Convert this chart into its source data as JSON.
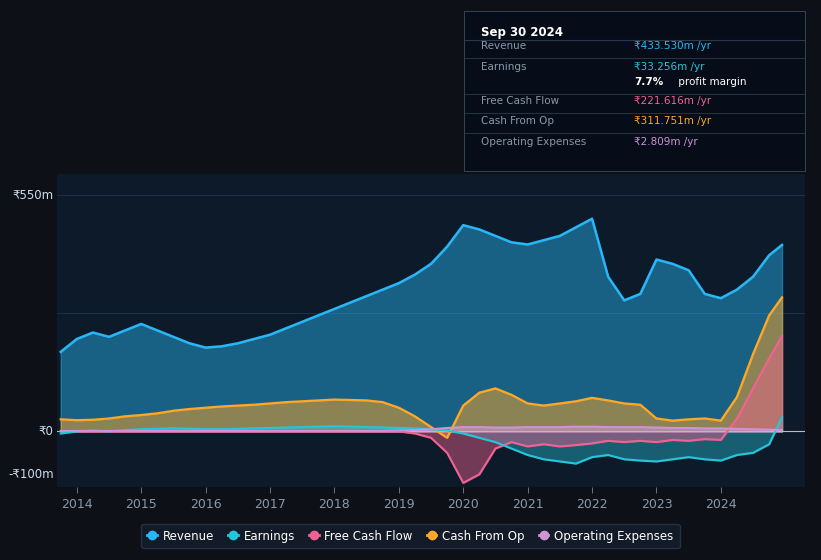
{
  "bg_color": "#0d1117",
  "plot_bg_color": "#0d1a2a",
  "ylim": [
    -130,
    600
  ],
  "xlim": [
    2013.7,
    2025.3
  ],
  "xticks": [
    2014,
    2015,
    2016,
    2017,
    2018,
    2019,
    2020,
    2021,
    2022,
    2023,
    2024
  ],
  "years": [
    2013.75,
    2014.0,
    2014.25,
    2014.5,
    2014.75,
    2015.0,
    2015.25,
    2015.5,
    2015.75,
    2016.0,
    2016.25,
    2016.5,
    2016.75,
    2017.0,
    2017.25,
    2017.5,
    2017.75,
    2018.0,
    2018.25,
    2018.5,
    2018.75,
    2019.0,
    2019.25,
    2019.5,
    2019.75,
    2020.0,
    2020.25,
    2020.5,
    2020.75,
    2021.0,
    2021.25,
    2021.5,
    2021.75,
    2022.0,
    2022.25,
    2022.5,
    2022.75,
    2023.0,
    2023.25,
    2023.5,
    2023.75,
    2024.0,
    2024.25,
    2024.5,
    2024.75,
    2024.95
  ],
  "revenue": [
    185,
    215,
    230,
    220,
    235,
    250,
    235,
    220,
    205,
    195,
    198,
    205,
    215,
    225,
    240,
    255,
    270,
    285,
    300,
    315,
    330,
    345,
    365,
    390,
    430,
    480,
    470,
    455,
    440,
    435,
    445,
    455,
    475,
    495,
    360,
    305,
    320,
    400,
    390,
    375,
    320,
    310,
    330,
    360,
    410,
    434
  ],
  "earnings": [
    -5,
    0,
    2,
    0,
    3,
    5,
    6,
    7,
    6,
    5,
    5,
    6,
    7,
    8,
    9,
    10,
    11,
    12,
    11,
    10,
    9,
    8,
    7,
    5,
    2,
    -5,
    -15,
    -25,
    -40,
    -55,
    -65,
    -70,
    -75,
    -60,
    -55,
    -65,
    -68,
    -70,
    -65,
    -60,
    -65,
    -68,
    -55,
    -50,
    -30,
    33
  ],
  "free_cash_flow": [
    0,
    0,
    0,
    0,
    0,
    0,
    0,
    0,
    0,
    0,
    0,
    0,
    0,
    0,
    0,
    0,
    0,
    0,
    0,
    0,
    0,
    0,
    -5,
    -15,
    -50,
    -120,
    -100,
    -40,
    -25,
    -35,
    -30,
    -35,
    -32,
    -28,
    -22,
    -25,
    -22,
    -25,
    -20,
    -22,
    -18,
    -20,
    30,
    100,
    170,
    222
  ],
  "cash_from_op": [
    28,
    26,
    27,
    30,
    35,
    38,
    42,
    48,
    52,
    55,
    58,
    60,
    62,
    65,
    68,
    70,
    72,
    74,
    73,
    72,
    68,
    55,
    35,
    10,
    -15,
    60,
    90,
    100,
    85,
    65,
    60,
    65,
    70,
    78,
    72,
    65,
    62,
    30,
    25,
    28,
    30,
    25,
    80,
    180,
    270,
    312
  ],
  "operating_expenses": [
    1,
    1,
    1,
    1,
    1,
    1,
    1,
    1,
    1,
    1,
    1,
    1,
    1,
    1,
    1,
    1,
    1,
    1,
    1,
    1,
    1,
    2,
    3,
    5,
    8,
    10,
    10,
    9,
    9,
    10,
    10,
    10,
    11,
    11,
    10,
    10,
    10,
    9,
    8,
    8,
    7,
    7,
    6,
    5,
    4,
    3
  ],
  "revenue_color": "#29b6f6",
  "earnings_color": "#26c6da",
  "free_cash_flow_color": "#f06292",
  "cash_from_op_color": "#ffa726",
  "operating_expenses_color": "#ce93d8",
  "grid_color": "#1e3a5f",
  "zero_line_color": "#bbbbbb",
  "ylabel_550": "₹550m",
  "ylabel_0": "₹0",
  "ylabel_minus100": "-₹100m",
  "info_box_title": "Sep 30 2024",
  "info_rows": [
    {
      "label": "Revenue",
      "value": "₹433.530m /yr",
      "value_color": "#29b6f6"
    },
    {
      "label": "Earnings",
      "value": "₹33.256m /yr",
      "value_color": "#26c6da"
    },
    {
      "label": "",
      "value": "7.7%",
      "value_color": "#ffffff",
      "extra": " profit margin"
    },
    {
      "label": "Free Cash Flow",
      "value": "₹221.616m /yr",
      "value_color": "#f06292"
    },
    {
      "label": "Cash From Op",
      "value": "₹311.751m /yr",
      "value_color": "#ffa726"
    },
    {
      "label": "Operating Expenses",
      "value": "₹2.809m /yr",
      "value_color": "#ce93d8"
    }
  ],
  "legend": [
    {
      "label": "Revenue",
      "color": "#29b6f6"
    },
    {
      "label": "Earnings",
      "color": "#26c6da"
    },
    {
      "label": "Free Cash Flow",
      "color": "#f06292"
    },
    {
      "label": "Cash From Op",
      "color": "#ffa726"
    },
    {
      "label": "Operating Expenses",
      "color": "#ce93d8"
    }
  ]
}
